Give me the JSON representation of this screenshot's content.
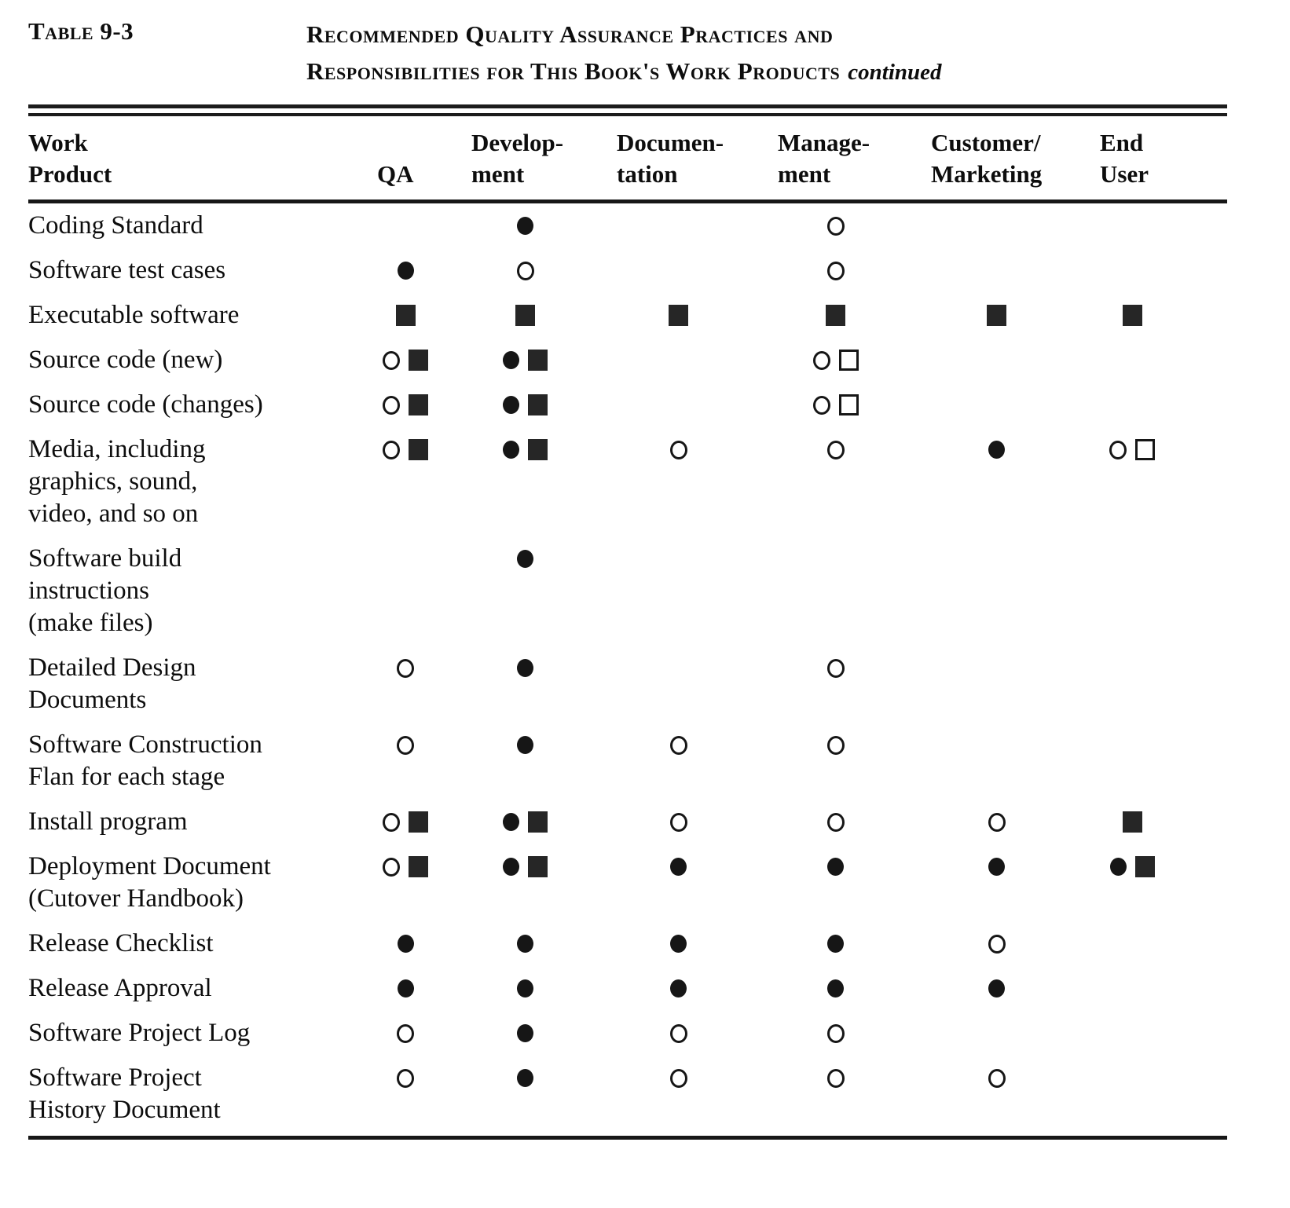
{
  "caption": {
    "label": "Table 9-3",
    "title_line1": "Recommended Quality Assurance Practices and",
    "title_line2": "Responsibilities for This Book's Work Products",
    "continued": "continued"
  },
  "symbols_legend": {
    "filled-circle": "●",
    "open-circle": "○",
    "filled-square": "■",
    "open-square": "□"
  },
  "table": {
    "columns": [
      {
        "key": "work-product",
        "line1": "Work",
        "line2": "Product"
      },
      {
        "key": "qa",
        "line1": "",
        "line2": "QA"
      },
      {
        "key": "development",
        "line1": "Develop-",
        "line2": "ment"
      },
      {
        "key": "documentation",
        "line1": "Documen-",
        "line2": "tation"
      },
      {
        "key": "management",
        "line1": "Manage-",
        "line2": "ment"
      },
      {
        "key": "customer-marketing",
        "line1": "Customer/",
        "line2": "Marketing"
      },
      {
        "key": "end-user",
        "line1": "End",
        "line2": "User"
      }
    ],
    "rows": [
      {
        "product_lines": [
          "Coding Standard"
        ],
        "cells": [
          [],
          [
            "filled-circle"
          ],
          [],
          [
            "open-circle"
          ],
          [],
          []
        ]
      },
      {
        "product_lines": [
          "Software test cases"
        ],
        "cells": [
          [
            "filled-circle"
          ],
          [
            "open-circle"
          ],
          [],
          [
            "open-circle"
          ],
          [],
          []
        ]
      },
      {
        "product_lines": [
          "Executable software"
        ],
        "cells": [
          [
            "filled-square"
          ],
          [
            "filled-square"
          ],
          [
            "filled-square"
          ],
          [
            "filled-square"
          ],
          [
            "filled-square"
          ],
          [
            "filled-square"
          ]
        ]
      },
      {
        "product_lines": [
          "Source code (new)"
        ],
        "cells": [
          [
            "open-circle",
            "filled-square"
          ],
          [
            "filled-circle",
            "filled-square"
          ],
          [],
          [
            "open-circle",
            "open-square"
          ],
          [],
          []
        ]
      },
      {
        "product_lines": [
          "Source code (changes)"
        ],
        "cells": [
          [
            "open-circle",
            "filled-square"
          ],
          [
            "filled-circle",
            "filled-square"
          ],
          [],
          [
            "open-circle",
            "open-square"
          ],
          [],
          []
        ]
      },
      {
        "product_lines": [
          "Media, including",
          "graphics, sound,",
          "video, and so on"
        ],
        "cells": [
          [
            "open-circle",
            "filled-square"
          ],
          [
            "filled-circle",
            "filled-square"
          ],
          [
            "open-circle"
          ],
          [
            "open-circle"
          ],
          [
            "filled-circle"
          ],
          [
            "open-circle",
            "open-square"
          ]
        ]
      },
      {
        "product_lines": [
          "Software  build",
          "instructions",
          "(make files)"
        ],
        "cells": [
          [],
          [
            "filled-circle"
          ],
          [],
          [],
          [],
          []
        ]
      },
      {
        "product_lines": [
          "Detailed Design",
          "Documents"
        ],
        "cells": [
          [
            "open-circle"
          ],
          [
            "filled-circle"
          ],
          [],
          [
            "open-circle"
          ],
          [],
          []
        ]
      },
      {
        "product_lines": [
          "Software  Construction",
          "Flan for each stage"
        ],
        "cells": [
          [
            "open-circle"
          ],
          [
            "filled-circle"
          ],
          [
            "open-circle"
          ],
          [
            "open-circle"
          ],
          [],
          []
        ]
      },
      {
        "product_lines": [
          "Install program"
        ],
        "cells": [
          [
            "open-circle",
            "filled-square"
          ],
          [
            "filled-circle",
            "filled-square"
          ],
          [
            "open-circle"
          ],
          [
            "open-circle"
          ],
          [
            "open-circle"
          ],
          [
            "filled-square"
          ]
        ]
      },
      {
        "product_lines": [
          "Deployment Document",
          "(Cutover  Handbook)"
        ],
        "cells": [
          [
            "open-circle",
            "filled-square"
          ],
          [
            "filled-circle",
            "filled-square"
          ],
          [
            "filled-circle"
          ],
          [
            "filled-circle"
          ],
          [
            "filled-circle"
          ],
          [
            "filled-circle",
            "filled-square"
          ]
        ]
      },
      {
        "product_lines": [
          "Release  Checklist"
        ],
        "cells": [
          [
            "filled-circle"
          ],
          [
            "filled-circle"
          ],
          [
            "filled-circle"
          ],
          [
            "filled-circle"
          ],
          [
            "open-circle"
          ],
          []
        ]
      },
      {
        "product_lines": [
          "Release  Approval"
        ],
        "cells": [
          [
            "filled-circle"
          ],
          [
            "filled-circle"
          ],
          [
            "filled-circle"
          ],
          [
            "filled-circle"
          ],
          [
            "filled-circle"
          ],
          []
        ]
      },
      {
        "product_lines": [
          "Software Project Log"
        ],
        "cells": [
          [
            "open-circle"
          ],
          [
            "filled-circle"
          ],
          [
            "open-circle"
          ],
          [
            "open-circle"
          ],
          [],
          []
        ]
      },
      {
        "product_lines": [
          "Software Project",
          "History Document"
        ],
        "cells": [
          [
            "open-circle"
          ],
          [
            "filled-circle"
          ],
          [
            "open-circle"
          ],
          [
            "open-circle"
          ],
          [
            "open-circle"
          ],
          []
        ]
      }
    ]
  }
}
